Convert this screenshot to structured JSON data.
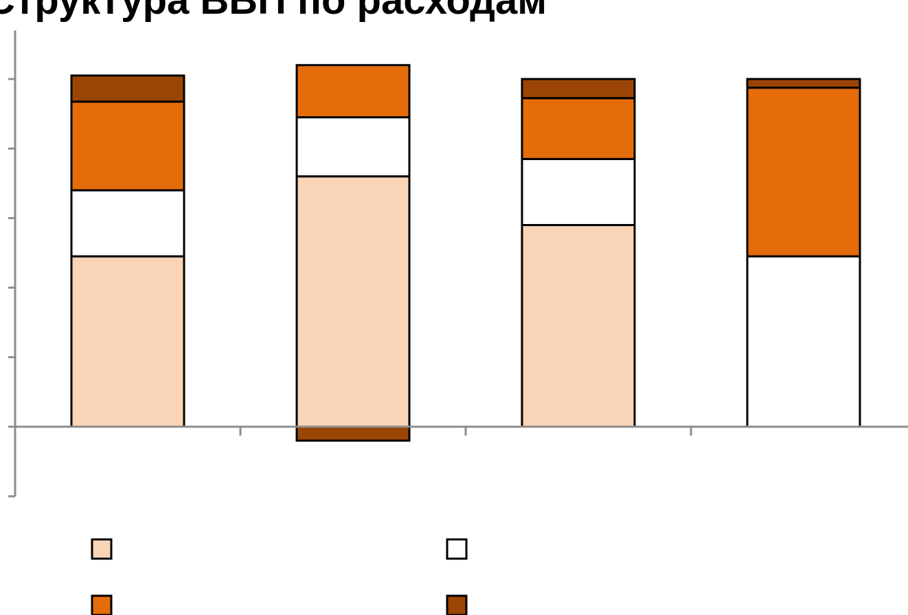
{
  "chart_data": {
    "type": "bar",
    "stacked": true,
    "title": "Структура ВВП по расходам",
    "xlabel": "",
    "ylabel": "",
    "ylim": [
      -0.2,
      1.1
    ],
    "ytick_step": 0.2,
    "categories": [
      "",
      "",
      "",
      ""
    ],
    "series": [
      {
        "color": "#FAD4B6",
        "values": [
          0.49,
          0.72,
          0.58,
          0.0
        ]
      },
      {
        "color": "#FFFFFF",
        "values": [
          0.19,
          0.17,
          0.19,
          0.49
        ]
      },
      {
        "color": "#E46C0A",
        "values": [
          0.255,
          0.15,
          0.175,
          0.485
        ]
      },
      {
        "color": "#9A4504",
        "values": [
          0.075,
          -0.04,
          0.055,
          0.025
        ]
      }
    ],
    "legend": {
      "position": "bottom",
      "columns": 2
    },
    "grid": false
  }
}
